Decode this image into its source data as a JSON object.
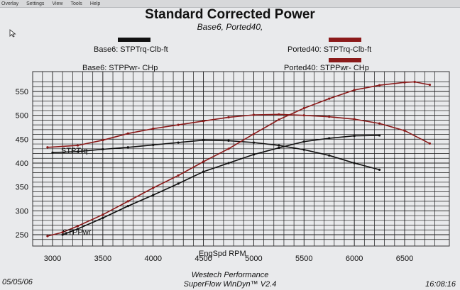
{
  "menu": [
    "Overlay",
    "Settings",
    "View",
    "Tools",
    "Help"
  ],
  "title": "Standard Corrected Power",
  "subtitle": "Base6, Ported40,",
  "legend": [
    {
      "label": "Base6: STPTrq-Clb-ft",
      "color": "#111111"
    },
    {
      "label": "Ported40: STPTrq-Clb-ft",
      "color": "#8b1a1a"
    },
    {
      "label": "Base6: STPPwr- CHp",
      "color": "#111111"
    },
    {
      "label": "Ported40: STPPwr- CHp",
      "color": "#8b1a1a"
    }
  ],
  "footer": {
    "date": "05/05/06",
    "company": "Westech Performance",
    "software": "SuperFlow WinDyn™ V2.4",
    "time": "16:08:16"
  },
  "chart_data": {
    "type": "line",
    "xlabel": "EngSpd  RPM",
    "ylabel": "",
    "xlim": [
      2900,
      6800
    ],
    "ylim": [
      230,
      575
    ],
    "xticks": [
      3000,
      3500,
      4000,
      4500,
      5000,
      5500,
      6000,
      6500
    ],
    "yticks": [
      250,
      300,
      350,
      400,
      450,
      500,
      550
    ],
    "annotations": [
      "STPTrq",
      "STPPwr"
    ],
    "series": [
      {
        "name": "Base6: STPTrq-Clb-ft",
        "color": "#111111",
        "x": [
          3000,
          3250,
          3500,
          3750,
          4000,
          4250,
          4500,
          4750,
          5000,
          5250,
          5500,
          5750,
          6000,
          6250
        ],
        "y": [
          422,
          424,
          429,
          433,
          438,
          443,
          448,
          447,
          443,
          437,
          428,
          416,
          400,
          386
        ]
      },
      {
        "name": "Ported40: STPTrq-Clb-ft",
        "color": "#8b1a1a",
        "x": [
          2950,
          3250,
          3500,
          3750,
          4000,
          4250,
          4500,
          4750,
          5000,
          5250,
          5500,
          5750,
          6000,
          6250,
          6500,
          6750
        ],
        "y": [
          433,
          437,
          448,
          462,
          472,
          480,
          488,
          496,
          501,
          502,
          500,
          497,
          492,
          483,
          468,
          441
        ]
      },
      {
        "name": "Base6: STPPwr- CHp",
        "color": "#111111",
        "x": [
          3100,
          3250,
          3500,
          3750,
          4000,
          4250,
          4500,
          4750,
          5000,
          5250,
          5500,
          5750,
          6000,
          6250
        ],
        "y": [
          250,
          262,
          285,
          310,
          333,
          357,
          382,
          400,
          418,
          432,
          445,
          452,
          457,
          458
        ]
      },
      {
        "name": "Ported40: STPPwr- CHp",
        "color": "#8b1a1a",
        "x": [
          2950,
          3100,
          3250,
          3500,
          3750,
          4000,
          4250,
          4500,
          4750,
          5000,
          5250,
          5500,
          5750,
          6000,
          6250,
          6500,
          6600,
          6750
        ],
        "y": [
          247,
          255,
          268,
          292,
          320,
          348,
          374,
          403,
          430,
          461,
          491,
          515,
          535,
          553,
          563,
          569,
          570,
          564
        ]
      }
    ]
  }
}
